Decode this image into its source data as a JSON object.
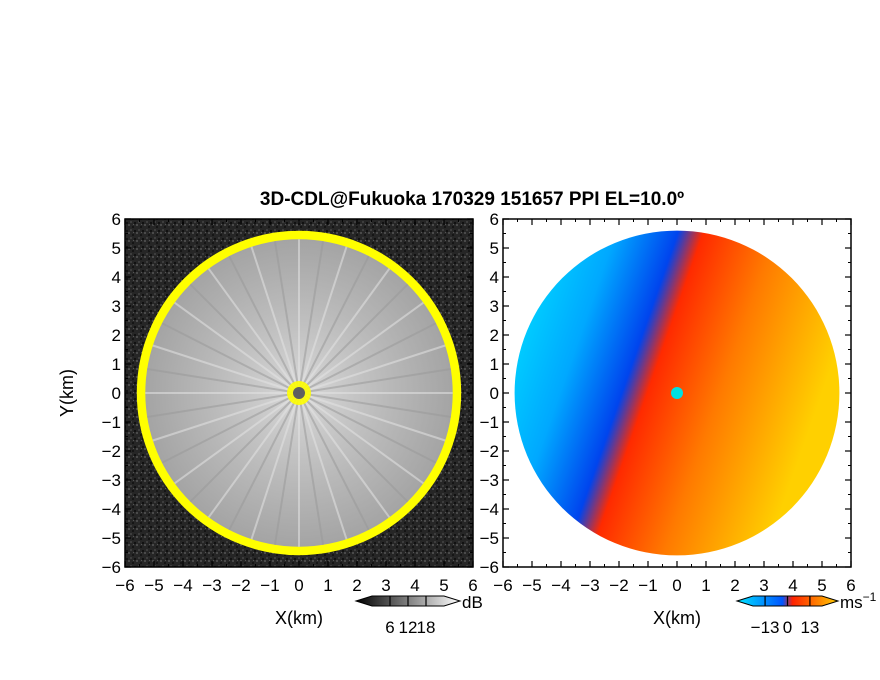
{
  "chart_data": {
    "title": "3D-CDL@Fukuoka 170329 151657 PPI EL=10.0º",
    "panels": [
      {
        "type": "heatmap",
        "quantity": "reflectivity",
        "xlabel": "X(km)",
        "ylabel": "Y(km)",
        "xlim": [
          -6,
          6
        ],
        "ylim": [
          -6,
          6
        ],
        "xticks": [
          "−6",
          "−5",
          "−4",
          "−3",
          "−2",
          "−1",
          "0",
          "1",
          "2",
          "3",
          "4",
          "5",
          "6"
        ],
        "yticks": [
          "−6",
          "−5",
          "−4",
          "−3",
          "−2",
          "−1",
          "0",
          "1",
          "2",
          "3",
          "4",
          "5",
          "6"
        ],
        "data_radius_km": 5.3,
        "edge_color": "#ffff00",
        "center_color": "#606060",
        "colorbar": {
          "unit": "dB",
          "ticks": [
            "6",
            "12",
            "18"
          ],
          "range": [
            0,
            24
          ]
        }
      },
      {
        "type": "heatmap",
        "quantity": "doppler velocity",
        "xlabel": "X(km)",
        "xlim": [
          -6,
          6
        ],
        "ylim": [
          -6,
          6
        ],
        "xticks": [
          "−6",
          "−5",
          "−4",
          "−3",
          "−2",
          "−1",
          "0",
          "1",
          "2",
          "3",
          "4",
          "5",
          "6"
        ],
        "yticks": [
          "−6",
          "−5",
          "−4",
          "−3",
          "−2",
          "−1",
          "0",
          "1",
          "2",
          "3",
          "4",
          "5",
          "6"
        ],
        "data_radius_km": 5.6,
        "center_color": "#00e0e0",
        "colorbar": {
          "unit": "ms",
          "unit_exponent": "−1",
          "ticks": [
            "−13",
            "0",
            "13"
          ],
          "range": [
            -20,
            20
          ],
          "colors": [
            "#00e5ff",
            "#0055ff",
            "#ff2200",
            "#ffcc00"
          ]
        }
      }
    ]
  }
}
